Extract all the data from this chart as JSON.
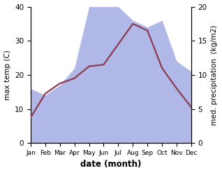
{
  "months": [
    "Jan",
    "Feb",
    "Mar",
    "Apr",
    "May",
    "Jun",
    "Jul",
    "Aug",
    "Sep",
    "Oct",
    "Nov",
    "Dec"
  ],
  "max_temp": [
    7.5,
    14.5,
    17.5,
    19.0,
    22.5,
    23.0,
    29.0,
    35.0,
    33.0,
    22.0,
    16.0,
    10.5
  ],
  "precipitation": [
    8.0,
    7.0,
    8.5,
    11.0,
    20.0,
    20.0,
    20.0,
    18.0,
    17.0,
    18.0,
    12.0,
    10.5
  ],
  "temp_color": "#8B3A52",
  "precip_fill_color": "#b0b8e8",
  "precip_fill_alpha": 1.0,
  "ylabel_left": "max temp (C)",
  "ylabel_right": "med. precipitation  (kg/m2)",
  "xlabel": "date (month)",
  "ylim_left": [
    0,
    40
  ],
  "ylim_right": [
    0,
    20
  ],
  "yticks_left": [
    0,
    10,
    20,
    30,
    40
  ],
  "yticks_right": [
    0,
    5,
    10,
    15,
    20
  ],
  "background_color": "#ffffff",
  "line_width": 1.6,
  "ylabel_fontsize": 7.5,
  "tick_fontsize": 7.5,
  "xlabel_fontsize": 8.5
}
